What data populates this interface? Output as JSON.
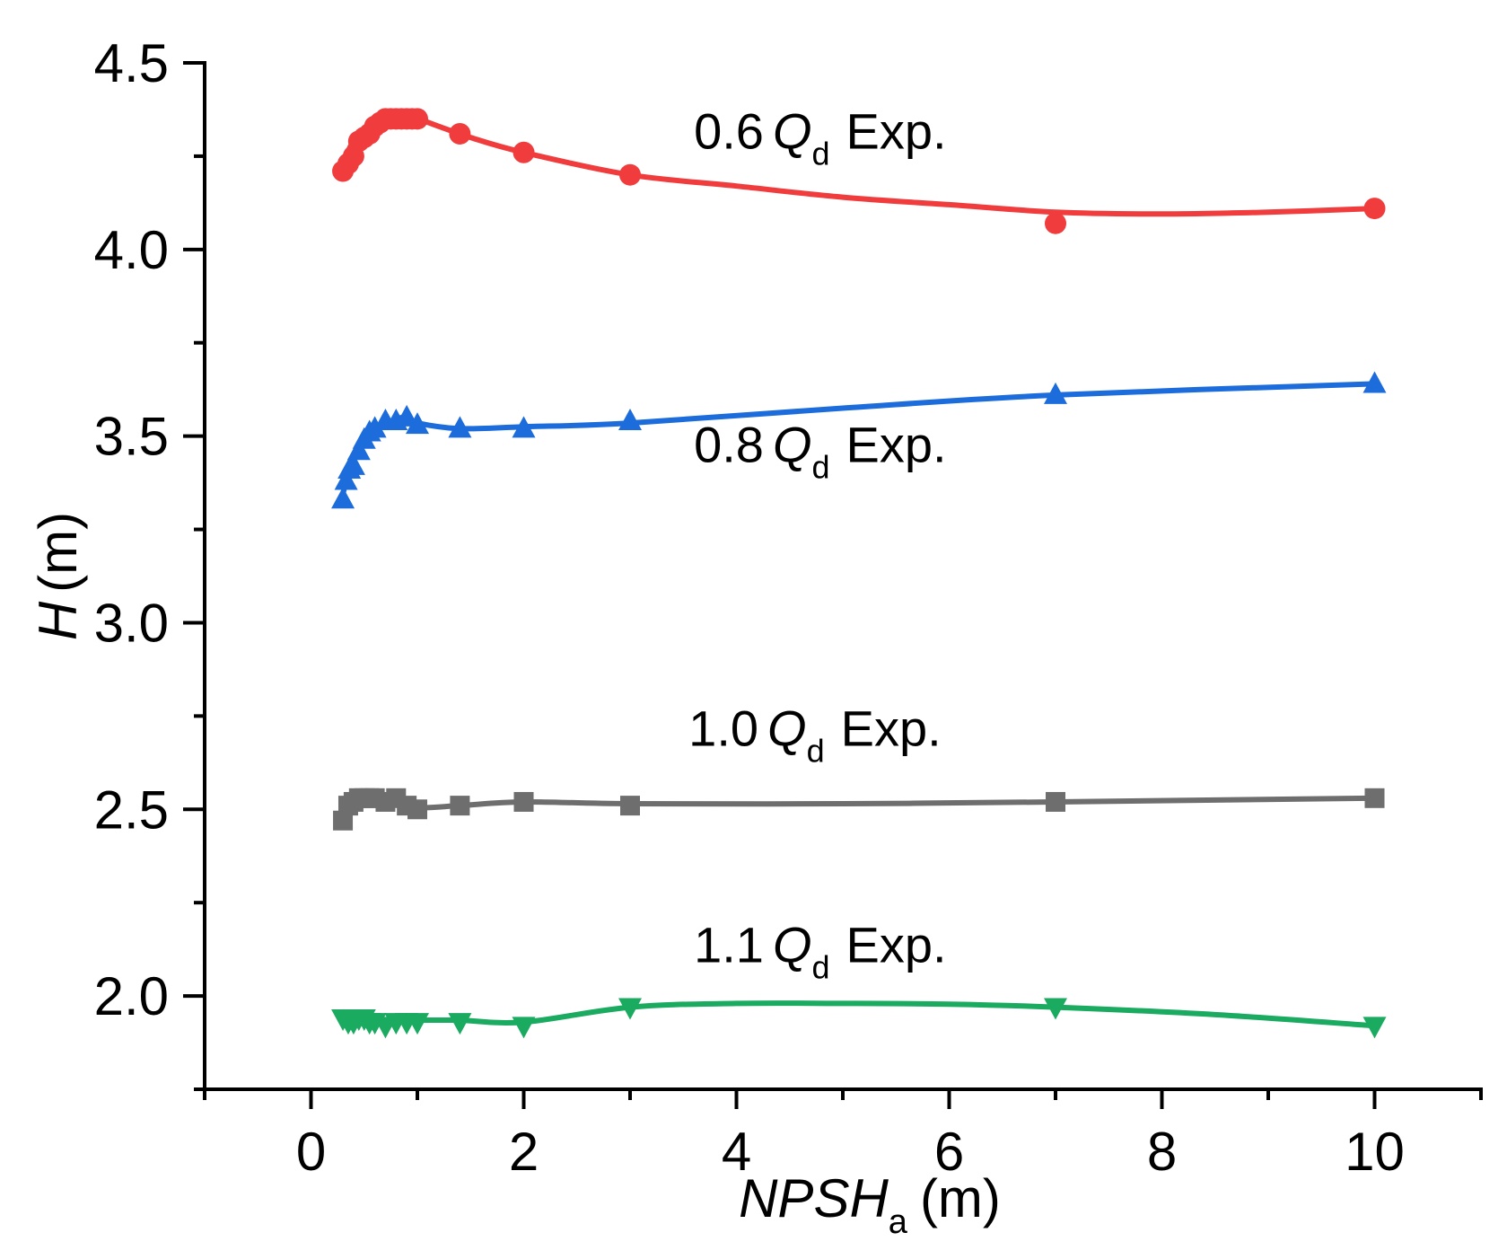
{
  "chart_data": {
    "type": "line",
    "xlabel": {
      "main": "NPSH",
      "sub": "a",
      "unit": "(m)"
    },
    "ylabel": {
      "main": "H",
      "unit": "(m)"
    },
    "xlim": [
      -1,
      11
    ],
    "ylim": [
      1.75,
      4.5
    ],
    "x_ticks": [
      0,
      2,
      4,
      6,
      8,
      10
    ],
    "x_tick_labels": [
      "0",
      "2",
      "4",
      "6",
      "8",
      "10"
    ],
    "y_ticks": [
      2.0,
      2.5,
      3.0,
      3.5,
      4.0,
      4.5
    ],
    "y_tick_labels": [
      "2.0",
      "2.5",
      "3.0",
      "3.5",
      "4.0",
      "4.5"
    ],
    "grid": false,
    "legend": "inline labels",
    "series": [
      {
        "name": "0.6Qd Exp.",
        "label": {
          "prefix": "0.6",
          "q": "Q",
          "sub": "d",
          "suffix": "Exp."
        },
        "color": "#f03c3c",
        "marker": "circle",
        "x": [
          0.3,
          0.35,
          0.4,
          0.45,
          0.5,
          0.55,
          0.6,
          0.65,
          0.7,
          0.75,
          0.8,
          0.85,
          0.9,
          0.95,
          1.0,
          1.4,
          2.0,
          3.0,
          7.0,
          10.0
        ],
        "y": [
          4.21,
          4.23,
          4.25,
          4.29,
          4.3,
          4.31,
          4.33,
          4.34,
          4.35,
          4.35,
          4.35,
          4.35,
          4.35,
          4.35,
          4.35,
          4.31,
          4.26,
          4.2,
          4.07,
          4.11
        ],
        "curve": [
          [
            0.28,
            4.2
          ],
          [
            0.33,
            4.25
          ],
          [
            0.4,
            4.29
          ],
          [
            0.5,
            4.31
          ],
          [
            0.6,
            4.33
          ],
          [
            0.75,
            4.35
          ],
          [
            0.9,
            4.35
          ],
          [
            1.0,
            4.35
          ],
          [
            1.2,
            4.33
          ],
          [
            1.5,
            4.3
          ],
          [
            2.0,
            4.26
          ],
          [
            3.0,
            4.2
          ],
          [
            4.0,
            4.17
          ],
          [
            5.0,
            4.14
          ],
          [
            6.0,
            4.12
          ],
          [
            7.0,
            4.1
          ],
          [
            8.0,
            4.095
          ],
          [
            9.0,
            4.1
          ],
          [
            10.0,
            4.11
          ]
        ]
      },
      {
        "name": "0.8Qd Exp.",
        "label": {
          "prefix": "0.8",
          "q": "Q",
          "sub": "d",
          "suffix": "Exp."
        },
        "color": "#1c6cdc",
        "marker": "triangle-up",
        "x": [
          0.3,
          0.33,
          0.36,
          0.4,
          0.45,
          0.5,
          0.55,
          0.6,
          0.7,
          0.8,
          0.9,
          1.0,
          1.4,
          2.0,
          3.0,
          7.0,
          10.0
        ],
        "y": [
          3.33,
          3.38,
          3.41,
          3.42,
          3.46,
          3.49,
          3.51,
          3.52,
          3.54,
          3.54,
          3.55,
          3.53,
          3.52,
          3.52,
          3.54,
          3.61,
          3.64
        ],
        "curve": [
          [
            0.28,
            3.32
          ],
          [
            0.35,
            3.4
          ],
          [
            0.45,
            3.47
          ],
          [
            0.6,
            3.52
          ],
          [
            0.8,
            3.545
          ],
          [
            0.9,
            3.55
          ],
          [
            1.0,
            3.535
          ],
          [
            1.4,
            3.52
          ],
          [
            2.0,
            3.525
          ],
          [
            3.0,
            3.535
          ],
          [
            5.0,
            3.575
          ],
          [
            7.0,
            3.61
          ],
          [
            10.0,
            3.64
          ]
        ]
      },
      {
        "name": "1.0Qd Exp.",
        "label": {
          "prefix": "1.0",
          "q": "Q",
          "sub": "d",
          "suffix": "Exp."
        },
        "color": "#6e6e6e",
        "marker": "square",
        "x": [
          0.3,
          0.35,
          0.4,
          0.45,
          0.5,
          0.55,
          0.6,
          0.7,
          0.8,
          0.9,
          1.0,
          1.4,
          2.0,
          3.0,
          7.0,
          10.0
        ],
        "y": [
          2.47,
          2.51,
          2.52,
          2.53,
          2.53,
          2.53,
          2.53,
          2.52,
          2.53,
          2.51,
          2.5,
          2.51,
          2.52,
          2.51,
          2.52,
          2.53
        ],
        "curve": [
          [
            0.28,
            2.47
          ],
          [
            0.35,
            2.51
          ],
          [
            0.45,
            2.53
          ],
          [
            0.6,
            2.53
          ],
          [
            0.8,
            2.525
          ],
          [
            1.0,
            2.505
          ],
          [
            1.4,
            2.51
          ],
          [
            2.0,
            2.52
          ],
          [
            3.0,
            2.515
          ],
          [
            5.0,
            2.515
          ],
          [
            7.0,
            2.52
          ],
          [
            10.0,
            2.53
          ]
        ]
      },
      {
        "name": "1.1Qd Exp.",
        "label": {
          "prefix": "1.1",
          "q": "Q",
          "sub": "d",
          "suffix": "Exp."
        },
        "color": "#1aaa60",
        "marker": "triangle-down",
        "x": [
          0.3,
          0.35,
          0.4,
          0.45,
          0.5,
          0.55,
          0.6,
          0.7,
          0.8,
          0.9,
          1.0,
          1.4,
          2.0,
          3.0,
          7.0,
          10.0
        ],
        "y": [
          1.94,
          1.93,
          1.93,
          1.94,
          1.94,
          1.93,
          1.93,
          1.92,
          1.93,
          1.93,
          1.93,
          1.93,
          1.92,
          1.97,
          1.97,
          1.92
        ],
        "curve": [
          [
            0.28,
            1.94
          ],
          [
            0.6,
            1.935
          ],
          [
            1.0,
            1.935
          ],
          [
            1.4,
            1.935
          ],
          [
            2.0,
            1.93
          ],
          [
            3.0,
            1.97
          ],
          [
            4.0,
            1.98
          ],
          [
            5.0,
            1.98
          ],
          [
            6.0,
            1.978
          ],
          [
            7.0,
            1.97
          ],
          [
            8.5,
            1.95
          ],
          [
            10.0,
            1.92
          ]
        ]
      }
    ],
    "label_positions": [
      {
        "series": 0,
        "at": [
          3.6,
          4.27
        ]
      },
      {
        "series": 1,
        "at": [
          3.6,
          3.43
        ]
      },
      {
        "series": 2,
        "at": [
          3.55,
          2.67
        ]
      },
      {
        "series": 3,
        "at": [
          3.6,
          2.09
        ]
      }
    ]
  }
}
